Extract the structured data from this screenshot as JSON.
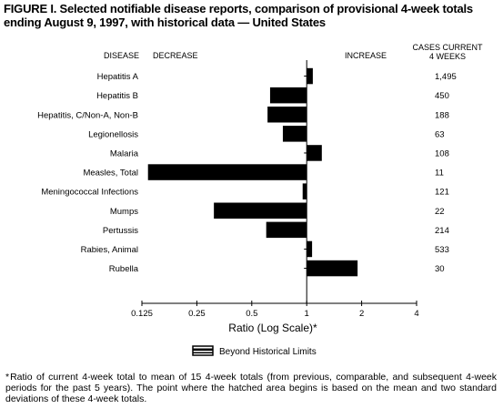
{
  "figure": {
    "title_line1": "FIGURE I. Selected notifiable disease reports, comparison of provisional 4-week totals",
    "title_line2": "ending August 9, 1997, with historical data — United States",
    "footnote_mark": "*",
    "footnote": "Ratio of current 4-week total to mean of 15 4-week totals (from previous, comparable, and subsequent 4-week periods for the past 5 years). The point where the hatched area begins is based on the mean and two standard deviations of these 4-week totals."
  },
  "headers": {
    "disease": "DISEASE",
    "decrease": "DECREASE",
    "increase": "INCREASE",
    "cases_line1": "CASES CURRENT",
    "cases_line2": "4 WEEKS"
  },
  "chart_data": {
    "type": "bar",
    "orientation": "horizontal",
    "xscale": "log2",
    "xlim": [
      0.125,
      4
    ],
    "baseline": 1,
    "xticks": [
      0.125,
      0.25,
      0.5,
      1,
      2,
      4
    ],
    "xtick_labels": [
      "0.125",
      "0.25",
      "0.5",
      "1",
      "2",
      "4"
    ],
    "xlabel": "Ratio (Log Scale)*",
    "legend_label": "Beyond Historical Limits",
    "legend_placement": "bottom-center",
    "categories": [
      "Hepatitis A",
      "Hepatitis B",
      "Hepatitis, C/Non-A, Non-B",
      "Legionellosis",
      "Malaria",
      "Measles, Total",
      "Meningococcal Infections",
      "Mumps",
      "Pertussis",
      "Rabies, Animal",
      "Rubella"
    ],
    "ratios": [
      1.08,
      0.63,
      0.61,
      0.74,
      1.21,
      0.135,
      0.95,
      0.31,
      0.6,
      1.07,
      1.9
    ],
    "cases": [
      "1,495",
      "450",
      "188",
      "63",
      "108",
      "11",
      "121",
      "22",
      "214",
      "533",
      "30"
    ]
  }
}
